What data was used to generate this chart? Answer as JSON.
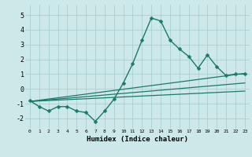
{
  "background_color": "#cce8e8",
  "grid_color": "#aacece",
  "line_color": "#1a7a6a",
  "xlabel": "Humidex (Indice chaleur)",
  "xlim": [
    -0.5,
    23.5
  ],
  "ylim": [
    -2.7,
    5.7
  ],
  "yticks": [
    -2,
    -1,
    0,
    1,
    2,
    3,
    4,
    5
  ],
  "xticks": [
    0,
    1,
    2,
    3,
    4,
    5,
    6,
    7,
    8,
    9,
    10,
    11,
    12,
    13,
    14,
    15,
    16,
    17,
    18,
    19,
    20,
    21,
    22,
    23
  ],
  "series": [
    {
      "x": [
        0,
        1,
        2,
        3,
        4,
        5,
        6,
        7,
        8,
        9,
        10,
        11,
        12,
        13,
        14,
        15,
        16,
        17,
        18,
        19,
        20,
        21,
        22,
        23
      ],
      "y": [
        -0.8,
        -1.2,
        -1.5,
        -1.2,
        -1.2,
        -1.5,
        -1.6,
        -2.2,
        -1.5,
        -0.7,
        0.4,
        1.7,
        3.3,
        4.8,
        4.6,
        3.3,
        2.7,
        2.2,
        1.4,
        2.3,
        1.5,
        0.9,
        1.0,
        1.0
      ],
      "marker": "D",
      "markersize": 2.5,
      "linewidth": 1.0,
      "has_marker": true
    },
    {
      "x": [
        0,
        23
      ],
      "y": [
        -0.85,
        1.05
      ],
      "linewidth": 0.9,
      "has_marker": false
    },
    {
      "x": [
        0,
        23
      ],
      "y": [
        -0.85,
        0.4
      ],
      "linewidth": 0.9,
      "has_marker": false
    },
    {
      "x": [
        0,
        23
      ],
      "y": [
        -0.85,
        -0.15
      ],
      "linewidth": 0.9,
      "has_marker": false
    }
  ]
}
